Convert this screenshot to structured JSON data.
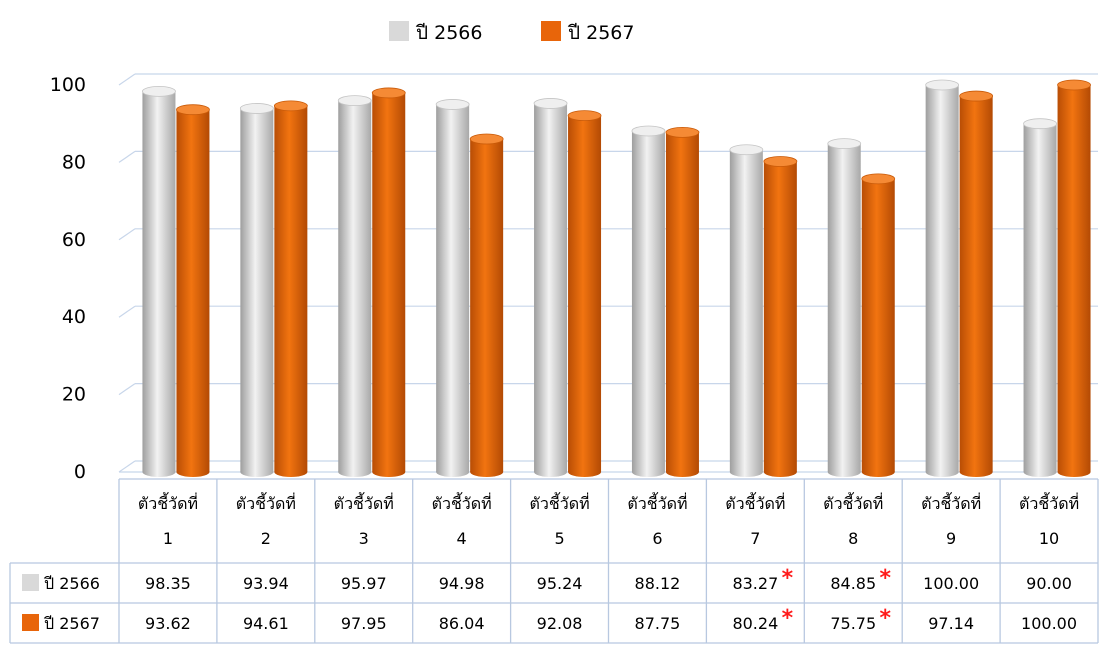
{
  "colors": {
    "series_2566": "#d9d9d9",
    "series_2567": "#e8650a",
    "grid": "#c8d6ea",
    "table_border": "#b8c8e0",
    "asterisk": "#ff1a1a"
  },
  "chart_data": {
    "type": "bar",
    "bar_style": "3d-cylinder",
    "categories": [
      [
        "ตัวชี้วัดที่",
        "1"
      ],
      [
        "ตัวชี้วัดที่",
        "2"
      ],
      [
        "ตัวชี้วัดที่",
        "3"
      ],
      [
        "ตัวชี้วัดที่",
        "4"
      ],
      [
        "ตัวชี้วัดที่",
        "5"
      ],
      [
        "ตัวชี้วัดที่",
        "6"
      ],
      [
        "ตัวชี้วัดที่",
        "7"
      ],
      [
        "ตัวชี้วัดที่",
        "8"
      ],
      [
        "ตัวชี้วัดที่",
        "9"
      ],
      [
        "ตัวชี้วัดที่",
        "10"
      ]
    ],
    "series": [
      {
        "name": "ปี 2566",
        "color": "#d9d9d9",
        "values": [
          98.35,
          93.94,
          95.97,
          94.98,
          95.24,
          88.12,
          83.27,
          84.85,
          100.0,
          90.0
        ],
        "labels": [
          "98.35",
          "93.94",
          "95.97",
          "94.98",
          "95.24",
          "88.12",
          "83.27",
          "84.85",
          "100.00",
          "90.00"
        ],
        "flagged": [
          false,
          false,
          false,
          false,
          false,
          false,
          true,
          true,
          false,
          false
        ]
      },
      {
        "name": "ปี 2567",
        "color": "#e8650a",
        "values": [
          93.62,
          94.61,
          97.95,
          86.04,
          92.08,
          87.75,
          80.24,
          75.75,
          97.14,
          100.0
        ],
        "labels": [
          "93.62",
          "94.61",
          "97.95",
          "86.04",
          "92.08",
          "87.75",
          "80.24",
          "75.75",
          "97.14",
          "100.00"
        ],
        "flagged": [
          false,
          false,
          false,
          false,
          false,
          false,
          true,
          true,
          false,
          false
        ]
      }
    ],
    "flag_symbol": "*",
    "yticks": [
      "0",
      "20",
      "40",
      "60",
      "80",
      "100"
    ],
    "ylim": [
      0,
      100
    ],
    "legend_position": "top-center",
    "grid": true,
    "data_table": true
  }
}
